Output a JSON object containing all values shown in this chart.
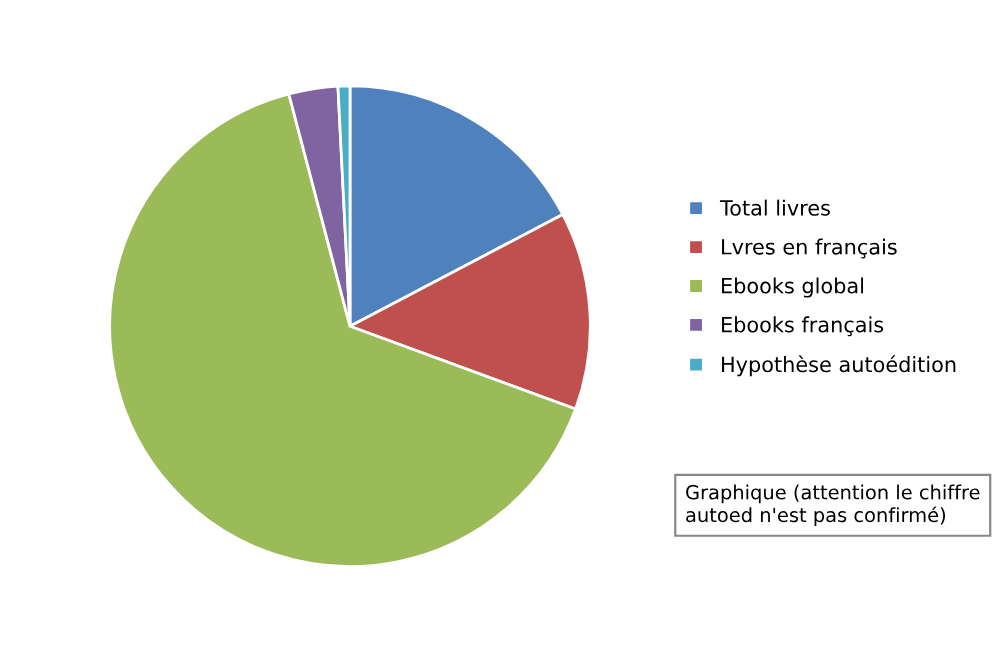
{
  "chart_data": {
    "type": "pie",
    "categories": [
      "Total livres",
      "Lvres en français",
      "Ebooks global",
      "Ebooks français",
      "Hypothèse autoédition"
    ],
    "values": [
      17.3,
      13.3,
      65.3,
      3.3,
      0.8
    ],
    "colors": [
      "#4f81bd",
      "#c0504d",
      "#9bbb59",
      "#8064a2",
      "#4bacc6"
    ],
    "legend": "right",
    "annotations": [
      "Graphique (attention le chiffre autoed n'est pas confirmé)"
    ]
  }
}
